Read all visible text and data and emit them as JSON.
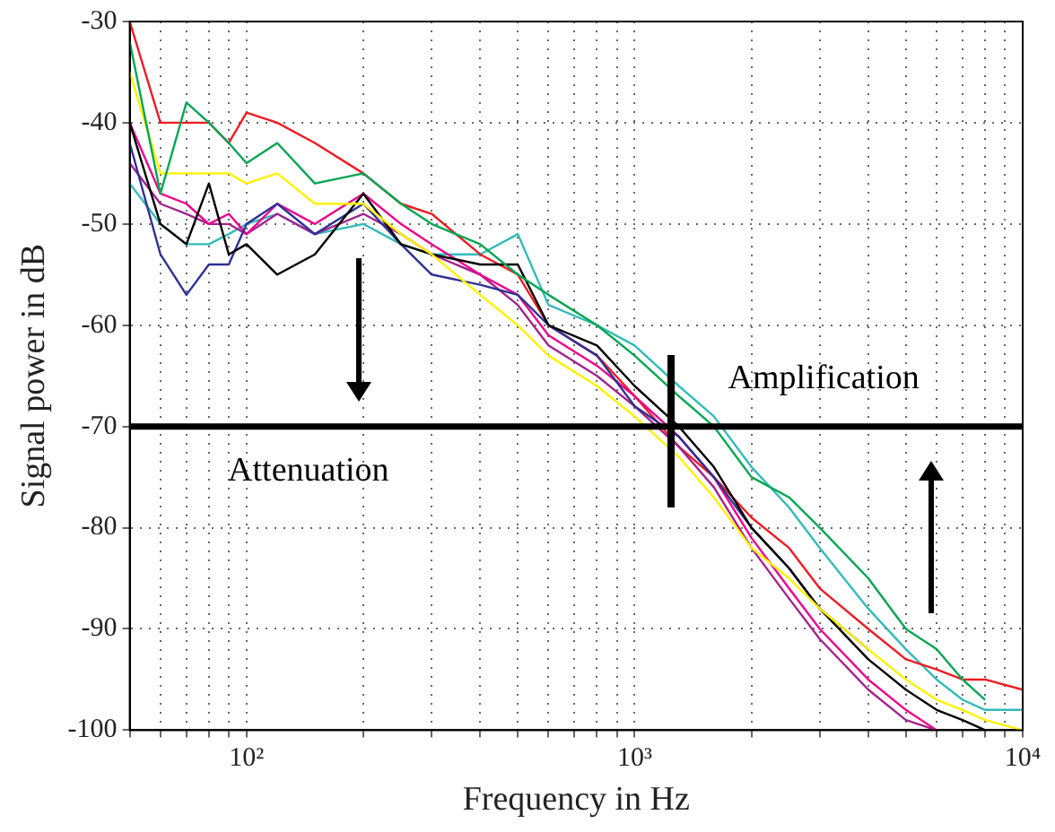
{
  "chart_data": {
    "type": "line",
    "xlabel": "Frequency in Hz",
    "ylabel": "Signal power in dB",
    "log": "x",
    "grid": true,
    "legend": false,
    "marker": "none",
    "line_style": "solid",
    "x": [
      50,
      60,
      70,
      80,
      90,
      100,
      120,
      150,
      200,
      250,
      300,
      400,
      500,
      600,
      800,
      1000,
      1300,
      1600,
      2000,
      2500,
      3000,
      4000,
      5000,
      6000,
      7000,
      8000,
      10000
    ],
    "xlim": [
      50,
      10000
    ],
    "ylim": [
      -100,
      -30
    ],
    "xticks": [
      {
        "value": 50,
        "label": null
      },
      {
        "value": 60,
        "label": null
      },
      {
        "value": 70,
        "label": null
      },
      {
        "value": 80,
        "label": null
      },
      {
        "value": 90,
        "label": null
      },
      {
        "value": 100,
        "label": "10²"
      },
      {
        "value": 200,
        "label": null
      },
      {
        "value": 300,
        "label": null
      },
      {
        "value": 400,
        "label": null
      },
      {
        "value": 500,
        "label": null
      },
      {
        "value": 600,
        "label": null
      },
      {
        "value": 700,
        "label": null
      },
      {
        "value": 800,
        "label": null
      },
      {
        "value": 900,
        "label": null
      },
      {
        "value": 1000,
        "label": "10³"
      },
      {
        "value": 2000,
        "label": null
      },
      {
        "value": 3000,
        "label": null
      },
      {
        "value": 4000,
        "label": null
      },
      {
        "value": 5000,
        "label": null
      },
      {
        "value": 6000,
        "label": null
      },
      {
        "value": 7000,
        "label": null
      },
      {
        "value": 8000,
        "label": null
      },
      {
        "value": 9000,
        "label": null
      },
      {
        "value": 10000,
        "label": "10⁴"
      }
    ],
    "yticks": [
      -100,
      -90,
      -80,
      -70,
      -60,
      -50,
      -40,
      -30
    ],
    "series": [
      {
        "color": "#00a651",
        "values": [
          -32,
          -47,
          -38,
          -40,
          -42,
          -44,
          -42,
          -46,
          -45,
          -48,
          -50,
          -52,
          -55,
          -57,
          -60,
          -63,
          -67,
          -70,
          -75,
          -77,
          -80,
          -85,
          -90,
          -92,
          -95,
          -97,
          null
        ]
      },
      {
        "color": "#fff200",
        "values": [
          -35,
          -45,
          -45,
          -45,
          -45,
          -46,
          -45,
          -48,
          -48,
          -51,
          -53,
          -57,
          -60,
          -63,
          -66,
          -69,
          -73,
          -77,
          -82,
          -85,
          -88,
          -92,
          -95,
          -97,
          -98,
          -99,
          -100
        ]
      },
      {
        "color": "#000000",
        "values": [
          -40,
          -50,
          -52,
          -46,
          -53,
          -52,
          -55,
          -53,
          -47,
          -52,
          -53,
          -54,
          -54,
          -60,
          -62,
          -66,
          -70,
          -74,
          -80,
          -84,
          -88,
          -93,
          -96,
          -98,
          -99,
          -100,
          -100
        ]
      },
      {
        "color": "#2e3192",
        "values": [
          -42,
          -53,
          -57,
          -54,
          -54,
          -50,
          -48,
          -51,
          -48,
          -52,
          -55,
          -56,
          -57,
          -60,
          -63,
          -68,
          -71,
          -75,
          -80,
          -84,
          -88,
          -92,
          null,
          null,
          null,
          null,
          null
        ]
      },
      {
        "color": "#ec008c",
        "values": [
          -40,
          -47,
          -48,
          -50,
          -49,
          -51,
          -48,
          -50,
          -47,
          -50,
          -52,
          -55,
          -57,
          -61,
          -64,
          -67,
          -71,
          -75,
          -81,
          -86,
          -90,
          -95,
          -98,
          -100,
          null,
          null,
          null
        ]
      },
      {
        "color": "#a3238e",
        "values": [
          -44,
          -48,
          -49,
          -50,
          -50,
          -51,
          -49,
          -51,
          -49,
          -51,
          -53,
          -55,
          -58,
          -62,
          -65,
          -68,
          -72,
          -76,
          -82,
          -87,
          -91,
          -96,
          -99,
          -100,
          null,
          null,
          null
        ]
      },
      {
        "color": "#ed1c24",
        "values": [
          -30,
          -40,
          -40,
          -40,
          -42,
          -39,
          -40,
          -42,
          -45,
          -48,
          -49,
          -53,
          -55,
          -60,
          -63,
          -67,
          -72,
          -75,
          -79,
          -82,
          -86,
          -90,
          -93,
          -94,
          -95,
          -95,
          -96
        ]
      },
      {
        "color": "#33bbbb",
        "values": [
          -46,
          -50,
          -52,
          -52,
          -51,
          -50,
          -49,
          -51,
          -50,
          -52,
          -53,
          -53,
          -51,
          -58,
          -60,
          -62,
          -66,
          -69,
          -74,
          -78,
          -82,
          -88,
          -92,
          -95,
          -97,
          -98,
          -98
        ]
      }
    ],
    "ref_lines": [
      {
        "axis": "y",
        "value": -70,
        "color": "#000000",
        "line_style": "solid"
      }
    ],
    "annotations": [
      "Amplification",
      "Attenuation"
    ]
  }
}
